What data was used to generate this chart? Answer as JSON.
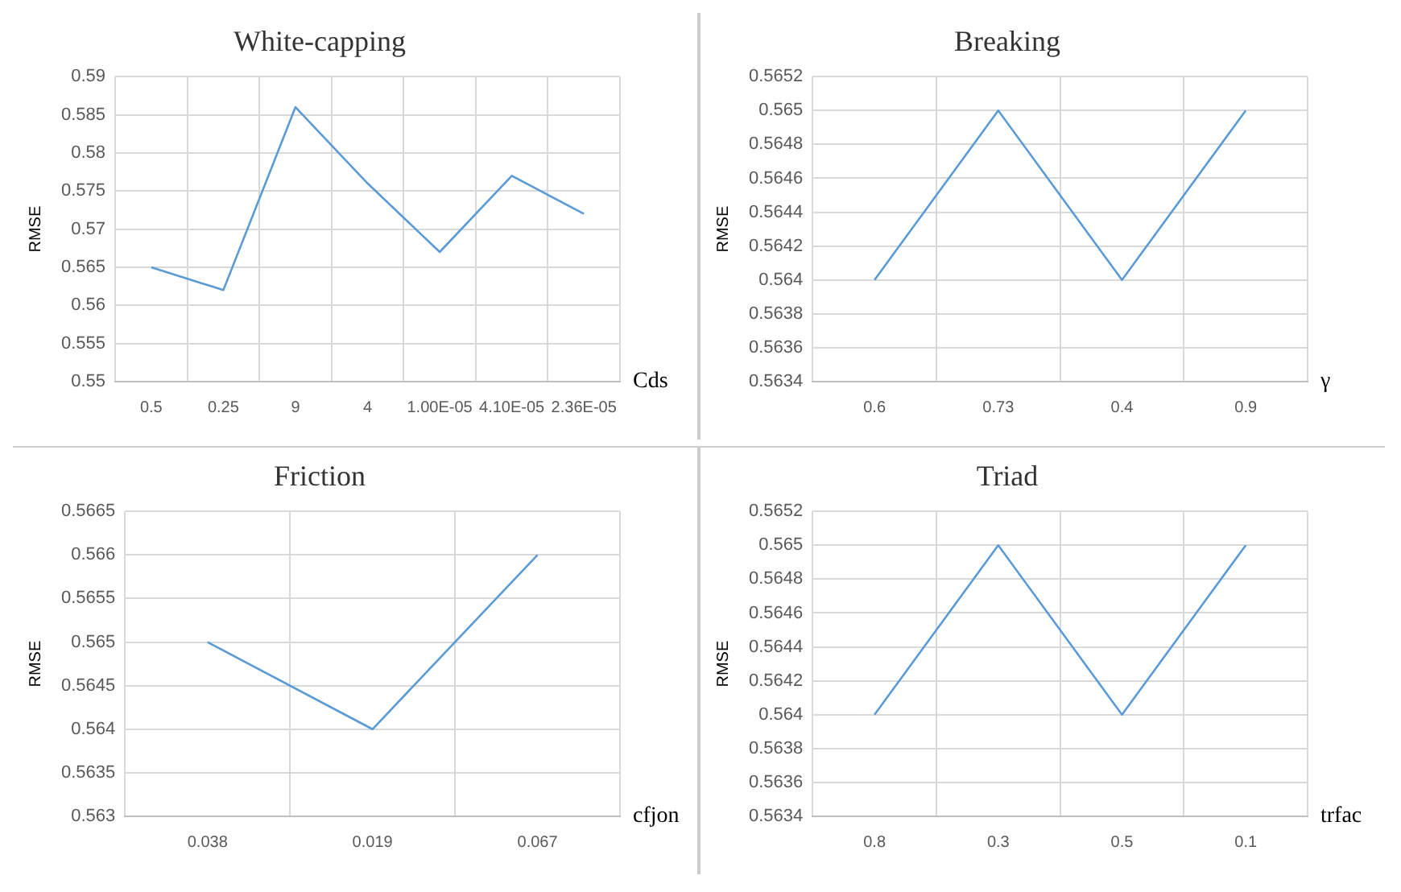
{
  "chart_data": [
    {
      "type": "line",
      "title": "White-capping",
      "xlabel": "Cds",
      "ylabel": "RMSE",
      "categories": [
        "0.5",
        "0.25",
        "9",
        "4",
        "1.00E-05",
        "4.10E-05",
        "2.36E-05"
      ],
      "values": [
        0.565,
        0.562,
        0.586,
        0.576,
        0.567,
        0.577,
        0.572
      ],
      "color": "#5b9bd5",
      "ylim": [
        0.55,
        0.59
      ],
      "yticks": [
        0.55,
        0.555,
        0.56,
        0.565,
        0.57,
        0.575,
        0.58,
        0.585,
        0.59
      ],
      "grid": true,
      "legend": false
    },
    {
      "type": "line",
      "title": "Breaking",
      "xlabel": "γ",
      "ylabel": "RMSE",
      "categories": [
        "0.6",
        "0.73",
        "0.4",
        "0.9"
      ],
      "values": [
        0.564,
        0.565,
        0.564,
        0.565
      ],
      "color": "#5b9bd5",
      "ylim": [
        0.5634,
        0.5652
      ],
      "yticks": [
        0.5634,
        0.5636,
        0.5638,
        0.564,
        0.5642,
        0.5644,
        0.5646,
        0.5648,
        0.565,
        0.5652
      ],
      "grid": true,
      "legend": false
    },
    {
      "type": "line",
      "title": "Friction",
      "xlabel": "cfjon",
      "ylabel": "RMSE",
      "categories": [
        "0.038",
        "0.019",
        "0.067"
      ],
      "values": [
        0.565,
        0.564,
        0.566
      ],
      "color": "#5b9bd5",
      "ylim": [
        0.563,
        0.5665
      ],
      "yticks": [
        0.563,
        0.5635,
        0.564,
        0.5645,
        0.565,
        0.5655,
        0.566,
        0.5665
      ],
      "grid": true,
      "legend": false
    },
    {
      "type": "line",
      "title": "Triad",
      "xlabel": "trfac",
      "ylabel": "RMSE",
      "categories": [
        "0.8",
        "0.3",
        "0.5",
        "0.1"
      ],
      "values": [
        0.564,
        0.565,
        0.564,
        0.565
      ],
      "color": "#5b9bd5",
      "ylim": [
        0.5634,
        0.5652
      ],
      "yticks": [
        0.5634,
        0.5636,
        0.5638,
        0.564,
        0.5642,
        0.5644,
        0.5646,
        0.5648,
        0.565,
        0.5652
      ],
      "grid": true,
      "legend": false
    }
  ]
}
